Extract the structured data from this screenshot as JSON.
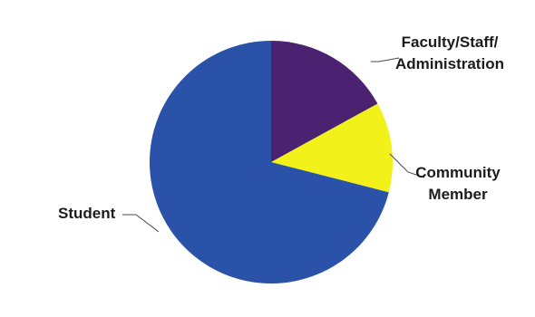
{
  "chart_data": {
    "type": "pie",
    "title": "",
    "start_angle_deg": 0,
    "direction": "clockwise",
    "slices": [
      {
        "label_lines": [
          "Faculty/Staff/",
          "Administration"
        ],
        "value": 17,
        "color": "#4b2272"
      },
      {
        "label_lines": [
          "Community",
          "Member"
        ],
        "value": 12,
        "color": "#f2f21a"
      },
      {
        "label_lines": [
          "Student"
        ],
        "value": 71,
        "color": "#2a52a8"
      }
    ]
  }
}
